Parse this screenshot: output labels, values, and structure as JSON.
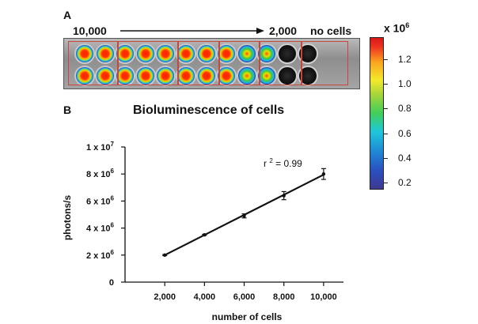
{
  "panel_a": {
    "letter": "A",
    "label_left": "10,000",
    "label_right": "2,000",
    "label_none": "no cells",
    "colorbar": {
      "unit_label": "x 10",
      "unit_exp": "6",
      "ticks": [
        "1.2",
        "1.0",
        "0.8",
        "0.6",
        "0.4",
        "0.2"
      ]
    }
  },
  "panel_b": {
    "letter": "B"
  },
  "chart_data": {
    "type": "scatter",
    "title": "Bioluminescence of cells",
    "xlabel": "number of cells",
    "ylabel": "photons/s",
    "xlim": [
      0,
      11000
    ],
    "ylim": [
      0,
      10000000
    ],
    "x_ticks": [
      {
        "value": 2000,
        "label": "2,000"
      },
      {
        "value": 4000,
        "label": "4,000"
      },
      {
        "value": 6000,
        "label": "6,000"
      },
      {
        "value": 8000,
        "label": "8,000"
      },
      {
        "value": 10000,
        "label": "10,000"
      }
    ],
    "y_ticks": [
      {
        "value": 0,
        "label": "0",
        "exp": ""
      },
      {
        "value": 2000000,
        "label": "2 x 10",
        "exp": "6"
      },
      {
        "value": 4000000,
        "label": "4 x 10",
        "exp": "6"
      },
      {
        "value": 6000000,
        "label": "6 x 10",
        "exp": "6"
      },
      {
        "value": 8000000,
        "label": "8 x 10",
        "exp": "6"
      },
      {
        "value": 10000000,
        "label": "1 x 10",
        "exp": "7"
      }
    ],
    "series": [
      {
        "x": [
          2000,
          4000,
          6000,
          8000,
          10000
        ],
        "y": [
          2000000,
          3500000,
          4900000,
          6400000,
          8000000
        ],
        "err": [
          40000,
          40000,
          150000,
          300000,
          400000
        ]
      }
    ],
    "fit_line": {
      "x": [
        2000,
        10000
      ],
      "y": [
        2000000,
        7950000
      ]
    },
    "annotation": {
      "label": "r",
      "exp": "2",
      "value_text": " = 0.99"
    },
    "grid": false
  }
}
